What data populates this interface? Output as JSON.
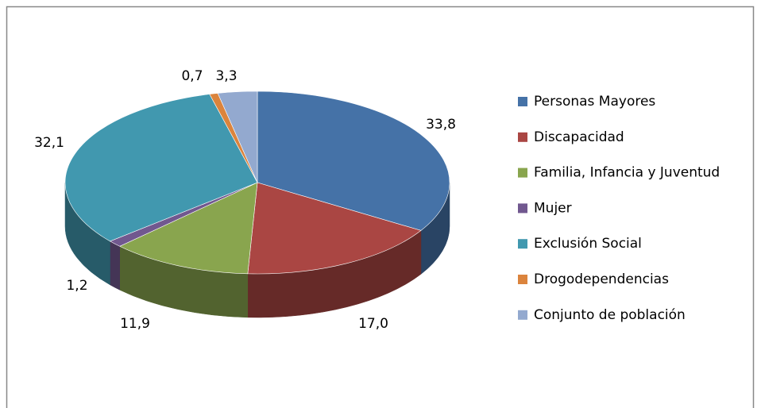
{
  "chart_data": {
    "type": "pie",
    "categories": [
      "Personas Mayores",
      "Discapacidad",
      "Familia, Infancia y Juventud",
      "Mujer",
      "Exclusión Social",
      "Drogodependencias",
      "Conjunto de población"
    ],
    "values": [
      33.8,
      17.0,
      11.9,
      1.2,
      32.1,
      0.7,
      3.3
    ],
    "value_labels": [
      "33,8",
      "17,0",
      "11,9",
      "1,2",
      "32,1",
      "0,7",
      "3,3"
    ],
    "colors": [
      "#4572a7",
      "#aa4643",
      "#89a54e",
      "#71588f",
      "#4198af",
      "#db843d",
      "#93a9cf"
    ],
    "legend": "right"
  }
}
